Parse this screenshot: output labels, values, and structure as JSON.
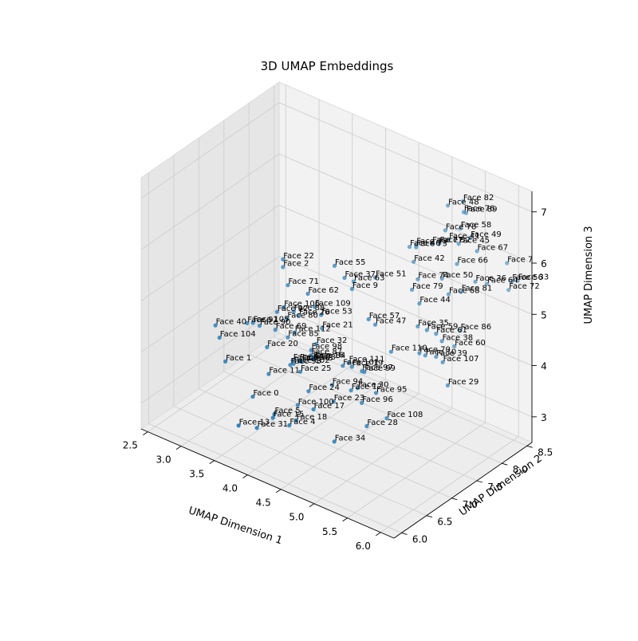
{
  "chart_data": {
    "type": "scatter",
    "projection": "3d",
    "title": "3D UMAP Embeddings",
    "xlabel": "UMAP Dimension 1",
    "ylabel": "UMAP Dimension 2",
    "zlabel": "UMAP Dimension 3",
    "xlim": [
      2.4,
      6.2
    ],
    "ylim": [
      5.85,
      8.6
    ],
    "zlim": [
      2.5,
      7.4
    ],
    "xticks": [
      2.5,
      3.0,
      3.5,
      4.0,
      4.5,
      5.0,
      5.5,
      6.0
    ],
    "xtick_labels": [
      "2.5",
      "3.0",
      "3.5",
      "4.0",
      "4.5",
      "5.0",
      "5.5",
      "6.0"
    ],
    "yticks": [
      6.0,
      6.5,
      7.0,
      7.5,
      8.0,
      8.5
    ],
    "ytick_labels": [
      "6.0",
      "6.5",
      "7.0",
      "7.5",
      "8.0",
      "8.5"
    ],
    "zticks": [
      3,
      4,
      5,
      6,
      7
    ],
    "ztick_labels": [
      "3",
      "4",
      "5",
      "6",
      "7"
    ],
    "grid": true,
    "point_color": "#1f77b4",
    "points": [
      {
        "label": "Face 0",
        "x": 3.55,
        "y": 6.55,
        "z": 3.3
      },
      {
        "label": "Face 1",
        "x": 3.1,
        "y": 6.6,
        "z": 3.7
      },
      {
        "label": "Face 2",
        "x": 3.4,
        "y": 7.35,
        "z": 5.2
      },
      {
        "label": "Face 4",
        "x": 4.1,
        "y": 6.55,
        "z": 3.05
      },
      {
        "label": "Face 5",
        "x": 3.95,
        "y": 6.45,
        "z": 3.25
      },
      {
        "label": "Face 7",
        "x": 5.9,
        "y": 8.5,
        "z": 5.9
      },
      {
        "label": "Face 9",
        "x": 4.4,
        "y": 7.4,
        "z": 5.3
      },
      {
        "label": "Face 10",
        "x": 5.35,
        "y": 7.6,
        "z": 4.4
      },
      {
        "label": "Face 11",
        "x": 3.6,
        "y": 6.8,
        "z": 3.6
      },
      {
        "label": "Face 12",
        "x": 4.65,
        "y": 7.05,
        "z": 3.7
      },
      {
        "label": "Face 13",
        "x": 3.6,
        "y": 6.2,
        "z": 3.0
      },
      {
        "label": "Face 15",
        "x": 3.95,
        "y": 6.42,
        "z": 3.2
      },
      {
        "label": "Face 16",
        "x": 4.15,
        "y": 6.95,
        "z": 4.1
      },
      {
        "label": "Face 17",
        "x": 4.35,
        "y": 6.7,
        "z": 3.4
      },
      {
        "label": "Face 18",
        "x": 4.2,
        "y": 6.55,
        "z": 3.2
      },
      {
        "label": "Face 19",
        "x": 4.55,
        "y": 7.2,
        "z": 4.0
      },
      {
        "label": "Face 20",
        "x": 3.5,
        "y": 6.9,
        "z": 4.0
      },
      {
        "label": "Face 21",
        "x": 4.1,
        "y": 7.2,
        "z": 4.5
      },
      {
        "label": "Face 22",
        "x": 3.4,
        "y": 7.35,
        "z": 5.35
      },
      {
        "label": "Face 23",
        "x": 4.5,
        "y": 6.9,
        "z": 3.5
      },
      {
        "label": "Face 24",
        "x": 4.2,
        "y": 6.8,
        "z": 3.6
      },
      {
        "label": "Face 25",
        "x": 4.0,
        "y": 6.9,
        "z": 3.8
      },
      {
        "label": "Face 26",
        "x": 3.75,
        "y": 7.2,
        "z": 4.55
      },
      {
        "label": "Face 28",
        "x": 5.0,
        "y": 6.9,
        "z": 3.3
      },
      {
        "label": "Face 29",
        "x": 5.65,
        "y": 7.65,
        "z": 3.95
      },
      {
        "label": "Face 30",
        "x": 4.75,
        "y": 7.05,
        "z": 3.8
      },
      {
        "label": "Face 31",
        "x": 3.8,
        "y": 6.3,
        "z": 3.0
      },
      {
        "label": "Face 32",
        "x": 4.05,
        "y": 7.15,
        "z": 4.2
      },
      {
        "label": "Face 33",
        "x": 6.1,
        "y": 8.45,
        "z": 5.7
      },
      {
        "label": "Face 34",
        "x": 4.7,
        "y": 6.65,
        "z": 3.0
      },
      {
        "label": "Face 35",
        "x": 5.2,
        "y": 7.65,
        "z": 4.85
      },
      {
        "label": "Face 36",
        "x": 5.65,
        "y": 8.2,
        "z": 5.6
      },
      {
        "label": "Face 37",
        "x": 4.25,
        "y": 7.45,
        "z": 5.4
      },
      {
        "label": "Face 38",
        "x": 5.45,
        "y": 7.8,
        "z": 4.6
      },
      {
        "label": "Face 39",
        "x": 5.4,
        "y": 7.75,
        "z": 4.3
      },
      {
        "label": "Face 40",
        "x": 2.8,
        "y": 6.8,
        "z": 4.1
      },
      {
        "label": "Face 41",
        "x": 5.25,
        "y": 8.2,
        "z": 6.2
      },
      {
        "label": "Face 42",
        "x": 4.95,
        "y": 7.9,
        "z": 5.8
      },
      {
        "label": "Face 43",
        "x": 3.95,
        "y": 7.0,
        "z": 3.9
      },
      {
        "label": "Face 44",
        "x": 5.15,
        "y": 7.75,
        "z": 5.2
      },
      {
        "label": "Face 45",
        "x": 5.4,
        "y": 8.2,
        "z": 6.2
      },
      {
        "label": "Face 46",
        "x": 4.85,
        "y": 7.95,
        "z": 6.0
      },
      {
        "label": "Face 47",
        "x": 4.75,
        "y": 7.4,
        "z": 4.8
      },
      {
        "label": "Face 48",
        "x": 5.2,
        "y": 8.25,
        "z": 6.8
      },
      {
        "label": "Face 49",
        "x": 5.5,
        "y": 8.3,
        "z": 6.3
      },
      {
        "label": "Face 50",
        "x": 5.3,
        "y": 8.0,
        "z": 5.6
      },
      {
        "label": "Face 51",
        "x": 4.6,
        "y": 7.6,
        "z": 5.5
      },
      {
        "label": "Face 52",
        "x": 5.15,
        "y": 8.15,
        "z": 6.1
      },
      {
        "label": "Face 53",
        "x": 4.05,
        "y": 7.25,
        "z": 4.7
      },
      {
        "label": "Face 55",
        "x": 4.1,
        "y": 7.45,
        "z": 5.55
      },
      {
        "label": "Face 56",
        "x": 6.05,
        "y": 8.4,
        "z": 5.7
      },
      {
        "label": "Face 57",
        "x": 4.65,
        "y": 7.4,
        "z": 4.85
      },
      {
        "label": "Face 58",
        "x": 5.35,
        "y": 8.3,
        "z": 6.4
      },
      {
        "label": "Face 59",
        "x": 5.3,
        "y": 7.7,
        "z": 4.8
      },
      {
        "label": "Face 60",
        "x": 5.6,
        "y": 7.85,
        "z": 4.55
      },
      {
        "label": "Face 61",
        "x": 5.4,
        "y": 7.75,
        "z": 4.75
      },
      {
        "label": "Face 62",
        "x": 3.85,
        "y": 7.25,
        "z": 5.0
      },
      {
        "label": "Face 63",
        "x": 4.35,
        "y": 7.5,
        "z": 5.35
      },
      {
        "label": "Face 64",
        "x": 5.75,
        "y": 8.3,
        "z": 5.55
      },
      {
        "label": "Face 66",
        "x": 5.45,
        "y": 8.1,
        "z": 5.9
      },
      {
        "label": "Face 67",
        "x": 5.6,
        "y": 8.3,
        "z": 6.1
      },
      {
        "label": "Face 68",
        "x": 5.4,
        "y": 8.0,
        "z": 5.35
      },
      {
        "label": "Face 69",
        "x": 3.55,
        "y": 7.0,
        "z": 4.3
      },
      {
        "label": "Face 70",
        "x": 5.3,
        "y": 7.55,
        "z": 4.45
      },
      {
        "label": "Face 71",
        "x": 3.55,
        "y": 7.25,
        "z": 5.0
      },
      {
        "label": "Face 72",
        "x": 6.0,
        "y": 8.4,
        "z": 5.5
      },
      {
        "label": "Face 73",
        "x": 4.95,
        "y": 7.95,
        "z": 6.05
      },
      {
        "label": "Face 74",
        "x": 5.05,
        "y": 7.85,
        "z": 5.55
      },
      {
        "label": "Face 75",
        "x": 4.95,
        "y": 7.95,
        "z": 6.1
      },
      {
        "label": "Face 76",
        "x": 5.4,
        "y": 8.3,
        "z": 6.75
      },
      {
        "label": "Face 77",
        "x": 5.15,
        "y": 8.0,
        "z": 6.2
      },
      {
        "label": "Face 78",
        "x": 5.2,
        "y": 8.2,
        "z": 6.35
      },
      {
        "label": "Face 79",
        "x": 5.0,
        "y": 7.8,
        "z": 5.35
      },
      {
        "label": "Face 80",
        "x": 3.65,
        "y": 7.1,
        "z": 4.5
      },
      {
        "label": "Face 81",
        "x": 5.55,
        "y": 8.05,
        "z": 5.45
      },
      {
        "label": "Face 82",
        "x": 5.35,
        "y": 8.35,
        "z": 6.9
      },
      {
        "label": "Face 83",
        "x": 3.85,
        "y": 6.95,
        "z": 3.9
      },
      {
        "label": "Face 84",
        "x": 4.1,
        "y": 7.05,
        "z": 4.0
      },
      {
        "label": "Face 85",
        "x": 3.7,
        "y": 7.05,
        "z": 4.2
      },
      {
        "label": "Face 86",
        "x": 5.65,
        "y": 7.9,
        "z": 4.85
      },
      {
        "label": "Face 87",
        "x": 4.05,
        "y": 7.05,
        "z": 4.05
      },
      {
        "label": "Face 88",
        "x": 3.75,
        "y": 7.1,
        "z": 4.7
      },
      {
        "label": "Face 89",
        "x": 5.4,
        "y": 8.35,
        "z": 6.7
      },
      {
        "label": "Face 90",
        "x": 3.35,
        "y": 6.95,
        "z": 4.3
      },
      {
        "label": "Face 91",
        "x": 3.2,
        "y": 6.9,
        "z": 4.3
      },
      {
        "label": "Face 92",
        "x": 3.5,
        "y": 7.1,
        "z": 4.55
      },
      {
        "label": "Face 93",
        "x": 3.85,
        "y": 6.9,
        "z": 3.85
      },
      {
        "label": "Face 94",
        "x": 4.4,
        "y": 7.0,
        "z": 3.7
      },
      {
        "label": "Face 95",
        "x": 4.95,
        "y": 7.15,
        "z": 3.75
      },
      {
        "label": "Face 96",
        "x": 4.85,
        "y": 7.0,
        "z": 3.6
      },
      {
        "label": "Face 97",
        "x": 4.7,
        "y": 7.2,
        "z": 4.0
      },
      {
        "label": "Face 98",
        "x": 4.05,
        "y": 7.05,
        "z": 4.15
      },
      {
        "label": "Face 99",
        "x": 4.7,
        "y": 7.25,
        "z": 3.95
      },
      {
        "label": "Face 100",
        "x": 4.15,
        "y": 6.65,
        "z": 3.4
      },
      {
        "label": "Face 101",
        "x": 4.45,
        "y": 7.15,
        "z": 4.0
      },
      {
        "label": "Face 102",
        "x": 3.9,
        "y": 6.9,
        "z": 3.9
      },
      {
        "label": "Face 103",
        "x": 3.95,
        "y": 6.95,
        "z": 3.95
      },
      {
        "label": "Face 104",
        "x": 2.9,
        "y": 6.75,
        "z": 3.95
      },
      {
        "label": "Face 105",
        "x": 3.25,
        "y": 6.95,
        "z": 4.3
      },
      {
        "label": "Face 106",
        "x": 3.6,
        "y": 7.1,
        "z": 4.7
      },
      {
        "label": "Face 107",
        "x": 5.5,
        "y": 7.75,
        "z": 4.25
      },
      {
        "label": "Face 108",
        "x": 5.15,
        "y": 7.1,
        "z": 3.4
      },
      {
        "label": "Face 109",
        "x": 3.95,
        "y": 7.25,
        "z": 4.8
      },
      {
        "label": "Face 110",
        "x": 4.95,
        "y": 7.45,
        "z": 4.35
      },
      {
        "label": "Face 111",
        "x": 4.5,
        "y": 7.2,
        "z": 4.05
      },
      {
        "label": "Face 112",
        "x": 3.8,
        "y": 7.05,
        "z": 4.35
      }
    ]
  }
}
